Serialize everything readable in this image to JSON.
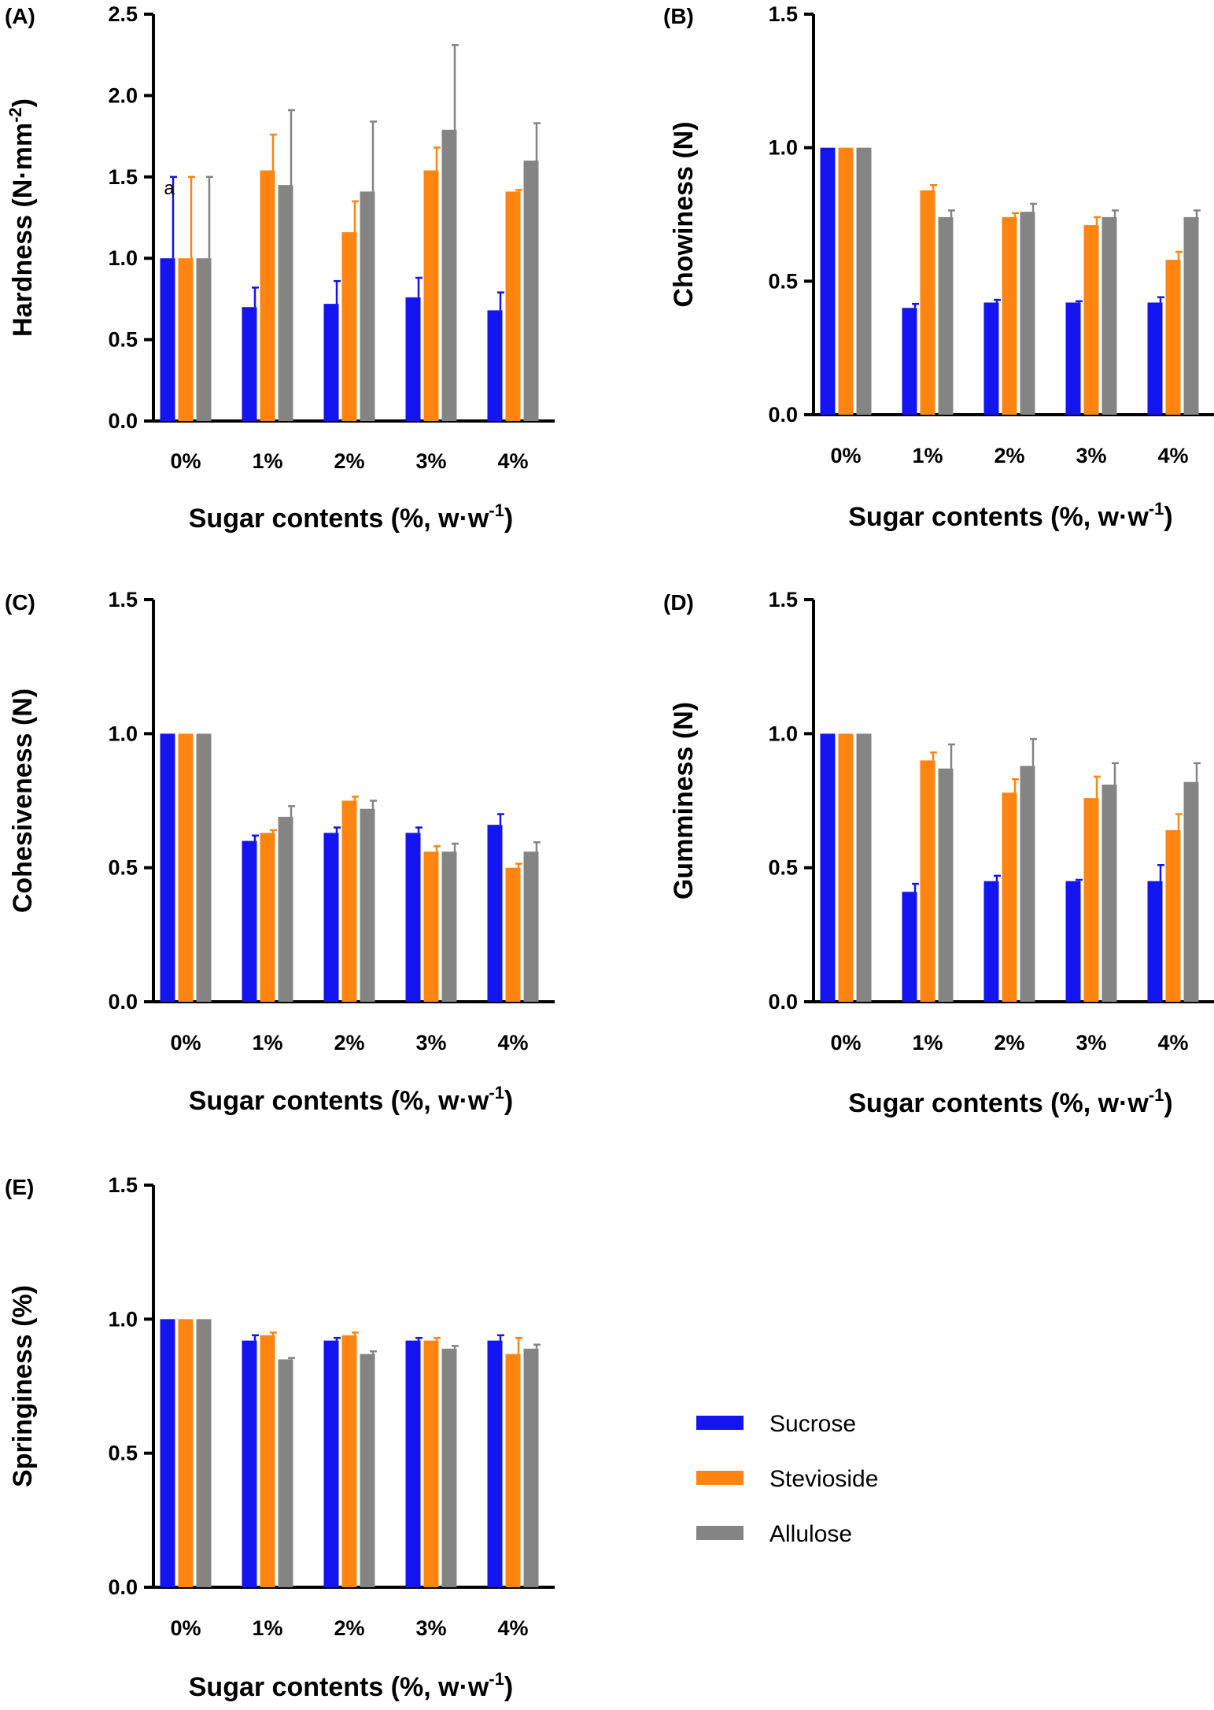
{
  "legend": {
    "items": [
      {
        "name": "Sucrose",
        "color": "#1414f0"
      },
      {
        "name": "Stevioside",
        "color": "#ff8410"
      },
      {
        "name": "Allulose",
        "color": "#848484"
      }
    ]
  },
  "chart_data": [
    {
      "type": "bar",
      "panel": "(A)",
      "title": "",
      "categories": [
        "0%",
        "1%",
        "2%",
        "3%",
        "4%"
      ],
      "xlabel": "Sugar contents (%, w·w",
      "xlabel_sup": "-1",
      "xlabel_end": ")",
      "ylabel": "Hardness (N·mm",
      "ylabel_sup": "-2",
      "ylabel_end": ")",
      "ylim": [
        0,
        2.5
      ],
      "yticks": [
        0.0,
        0.5,
        1.0,
        1.5,
        2.0,
        2.5
      ],
      "ytick_labels": [
        "0.0",
        "0.5",
        "1.0",
        "1.5",
        "2.0",
        "2.5"
      ],
      "annotation": "a",
      "series": [
        {
          "name": "Sucrose",
          "values": [
            1.0,
            0.7,
            0.72,
            0.76,
            0.68
          ],
          "errors": [
            0.5,
            0.12,
            0.14,
            0.12,
            0.11
          ]
        },
        {
          "name": "Stevioside",
          "values": [
            1.0,
            1.54,
            1.16,
            1.54,
            1.41
          ],
          "errors": [
            0.5,
            0.22,
            0.19,
            0.14,
            0.01
          ]
        },
        {
          "name": "Allulose",
          "values": [
            1.0,
            1.45,
            1.41,
            1.79,
            1.6
          ],
          "errors": [
            0.5,
            0.46,
            0.43,
            0.52,
            0.23
          ]
        }
      ]
    },
    {
      "type": "bar",
      "panel": "(B)",
      "title": "",
      "categories": [
        "0%",
        "1%",
        "2%",
        "3%",
        "4%"
      ],
      "xlabel": "Sugar contents (%, w·w",
      "xlabel_sup": "-1",
      "xlabel_end": ")",
      "ylabel": "Chowiness (N)",
      "ylim": [
        0,
        1.5
      ],
      "yticks": [
        0.0,
        0.5,
        1.0,
        1.5
      ],
      "ytick_labels": [
        "0.0",
        "0.5",
        "1.0",
        "1.5"
      ],
      "series": [
        {
          "name": "Sucrose",
          "values": [
            1.0,
            0.4,
            0.42,
            0.42,
            0.42
          ],
          "errors": [
            0,
            0.015,
            0.01,
            0.005,
            0.02
          ]
        },
        {
          "name": "Stevioside",
          "values": [
            1.0,
            0.84,
            0.74,
            0.71,
            0.58
          ],
          "errors": [
            0,
            0.02,
            0.015,
            0.03,
            0.03
          ]
        },
        {
          "name": "Allulose",
          "values": [
            1.0,
            0.74,
            0.76,
            0.74,
            0.74
          ],
          "errors": [
            0,
            0.025,
            0.03,
            0.025,
            0.025
          ]
        }
      ]
    },
    {
      "type": "bar",
      "panel": "(C)",
      "title": "",
      "categories": [
        "0%",
        "1%",
        "2%",
        "3%",
        "4%"
      ],
      "xlabel": "Sugar contents (%, w·w",
      "xlabel_sup": "-1",
      "xlabel_end": ")",
      "ylabel": "Cohesiveness (N)",
      "ylim": [
        0,
        1.5
      ],
      "yticks": [
        0.0,
        0.5,
        1.0,
        1.5
      ],
      "ytick_labels": [
        "0.0",
        "0.5",
        "1.0",
        "1.5"
      ],
      "series": [
        {
          "name": "Sucrose",
          "values": [
            1.0,
            0.6,
            0.63,
            0.63,
            0.66
          ],
          "errors": [
            0,
            0.02,
            0.02,
            0.02,
            0.04
          ]
        },
        {
          "name": "Stevioside",
          "values": [
            1.0,
            0.63,
            0.75,
            0.56,
            0.5
          ],
          "errors": [
            0,
            0.01,
            0.015,
            0.02,
            0.015
          ]
        },
        {
          "name": "Allulose",
          "values": [
            1.0,
            0.69,
            0.72,
            0.56,
            0.56
          ],
          "errors": [
            0,
            0.04,
            0.03,
            0.03,
            0.035
          ]
        }
      ]
    },
    {
      "type": "bar",
      "panel": "(D)",
      "title": "",
      "categories": [
        "0%",
        "1%",
        "2%",
        "3%",
        "4%"
      ],
      "xlabel": "Sugar contents (%, w·w",
      "xlabel_sup": "-1",
      "xlabel_end": ")",
      "ylabel": "Gumminess (N)",
      "ylim": [
        0,
        1.5
      ],
      "yticks": [
        0.0,
        0.5,
        1.0,
        1.5
      ],
      "ytick_labels": [
        "0.0",
        "0.5",
        "1.0",
        "1.5"
      ],
      "series": [
        {
          "name": "Sucrose",
          "values": [
            1.0,
            0.41,
            0.45,
            0.45,
            0.45
          ],
          "errors": [
            0,
            0.03,
            0.02,
            0.005,
            0.06
          ]
        },
        {
          "name": "Stevioside",
          "values": [
            1.0,
            0.9,
            0.78,
            0.76,
            0.64
          ],
          "errors": [
            0,
            0.03,
            0.05,
            0.08,
            0.06
          ]
        },
        {
          "name": "Allulose",
          "values": [
            1.0,
            0.87,
            0.88,
            0.81,
            0.82
          ],
          "errors": [
            0,
            0.09,
            0.1,
            0.08,
            0.07
          ]
        }
      ]
    },
    {
      "type": "bar",
      "panel": "(E)",
      "title": "",
      "categories": [
        "0%",
        "1%",
        "2%",
        "3%",
        "4%"
      ],
      "xlabel": "Sugar contents (%, w·w",
      "xlabel_sup": "-1",
      "xlabel_end": ")",
      "ylabel": "Springiness (%)",
      "ylim": [
        0,
        1.5
      ],
      "yticks": [
        0.0,
        0.5,
        1.0,
        1.5
      ],
      "ytick_labels": [
        "0.0",
        "0.5",
        "1.0",
        "1.5"
      ],
      "series": [
        {
          "name": "Sucrose",
          "values": [
            1.0,
            0.92,
            0.92,
            0.92,
            0.92
          ],
          "errors": [
            0,
            0.02,
            0.01,
            0.01,
            0.02
          ]
        },
        {
          "name": "Stevioside",
          "values": [
            1.0,
            0.94,
            0.94,
            0.92,
            0.87
          ],
          "errors": [
            0,
            0.01,
            0.01,
            0.01,
            0.06
          ]
        },
        {
          "name": "Allulose",
          "values": [
            1.0,
            0.85,
            0.87,
            0.89,
            0.89
          ],
          "errors": [
            0,
            0.005,
            0.01,
            0.01,
            0.015
          ]
        }
      ]
    }
  ]
}
